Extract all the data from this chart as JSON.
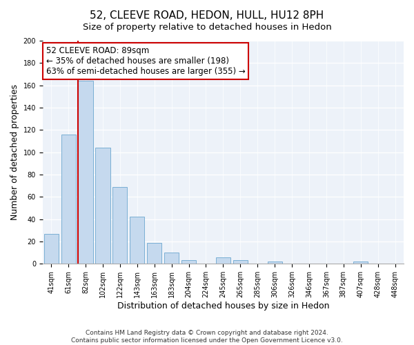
{
  "title": "52, CLEEVE ROAD, HEDON, HULL, HU12 8PH",
  "subtitle": "Size of property relative to detached houses in Hedon",
  "xlabel": "Distribution of detached houses by size in Hedon",
  "ylabel": "Number of detached properties",
  "bar_labels": [
    "41sqm",
    "61sqm",
    "82sqm",
    "102sqm",
    "122sqm",
    "143sqm",
    "163sqm",
    "183sqm",
    "204sqm",
    "224sqm",
    "245sqm",
    "265sqm",
    "285sqm",
    "306sqm",
    "326sqm",
    "346sqm",
    "367sqm",
    "387sqm",
    "407sqm",
    "428sqm",
    "448sqm"
  ],
  "bar_values": [
    27,
    116,
    164,
    104,
    69,
    42,
    19,
    10,
    3,
    0,
    6,
    3,
    0,
    2,
    0,
    0,
    0,
    0,
    2,
    0,
    0
  ],
  "bar_color": "#c5d9ee",
  "bar_edge_color": "#7aafd4",
  "vline_color": "#cc0000",
  "annotation_line1": "52 CLEEVE ROAD: 89sqm",
  "annotation_line2": "← 35% of detached houses are smaller (198)",
  "annotation_line3": "63% of semi-detached houses are larger (355) →",
  "box_facecolor": "white",
  "box_edgecolor": "#cc0000",
  "ylim": [
    0,
    200
  ],
  "yticks": [
    0,
    20,
    40,
    60,
    80,
    100,
    120,
    140,
    160,
    180,
    200
  ],
  "footnote": "Contains HM Land Registry data © Crown copyright and database right 2024.\nContains public sector information licensed under the Open Government Licence v3.0.",
  "bg_color": "#edf2f9",
  "title_fontsize": 11,
  "subtitle_fontsize": 9.5,
  "axis_label_fontsize": 9,
  "tick_fontsize": 7,
  "annotation_fontsize": 8.5,
  "footnote_fontsize": 6.5
}
